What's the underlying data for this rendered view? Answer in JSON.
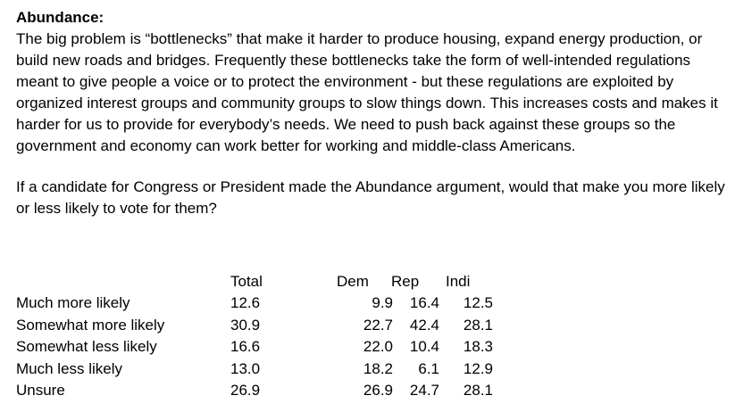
{
  "document": {
    "heading": "Abundance:",
    "paragraph": "The big problem is “bottlenecks” that make it harder to produce housing, expand energy production, or build new roads and bridges. Frequently these bottlenecks take the form of well-intended regulations meant to give people a voice or to protect the environment - but these regulations are exploited by organized interest groups and community groups to slow things down. This increases costs and makes it harder for us to provide for everybody’s needs. We need to push back against these groups so the government and economy can work better for working and middle-class Americans.",
    "question": "If a candidate for Congress or President made the Abundance argument, would that make you more likely or less likely to vote for them?"
  },
  "table": {
    "headers": {
      "total": "Total",
      "dem": "Dem",
      "rep": "Rep",
      "indi": "Indi"
    },
    "rows": [
      {
        "label": "Much more likely",
        "total": "12.6",
        "dem": "9.9",
        "rep": "16.4",
        "indi": "12.5"
      },
      {
        "label": "Somewhat more likely",
        "total": "30.9",
        "dem": "22.7",
        "rep": "42.4",
        "indi": "28.1"
      },
      {
        "label": "Somewhat less likely",
        "total": "16.6",
        "dem": "22.0",
        "rep": "10.4",
        "indi": "18.3"
      },
      {
        "label": "Much less likely",
        "total": "13.0",
        "dem": "18.2",
        "rep": "6.1",
        "indi": "12.9"
      },
      {
        "label": "Unsure",
        "total": "26.9",
        "dem": "26.9",
        "rep": "24.7",
        "indi": "28.1"
      }
    ]
  }
}
